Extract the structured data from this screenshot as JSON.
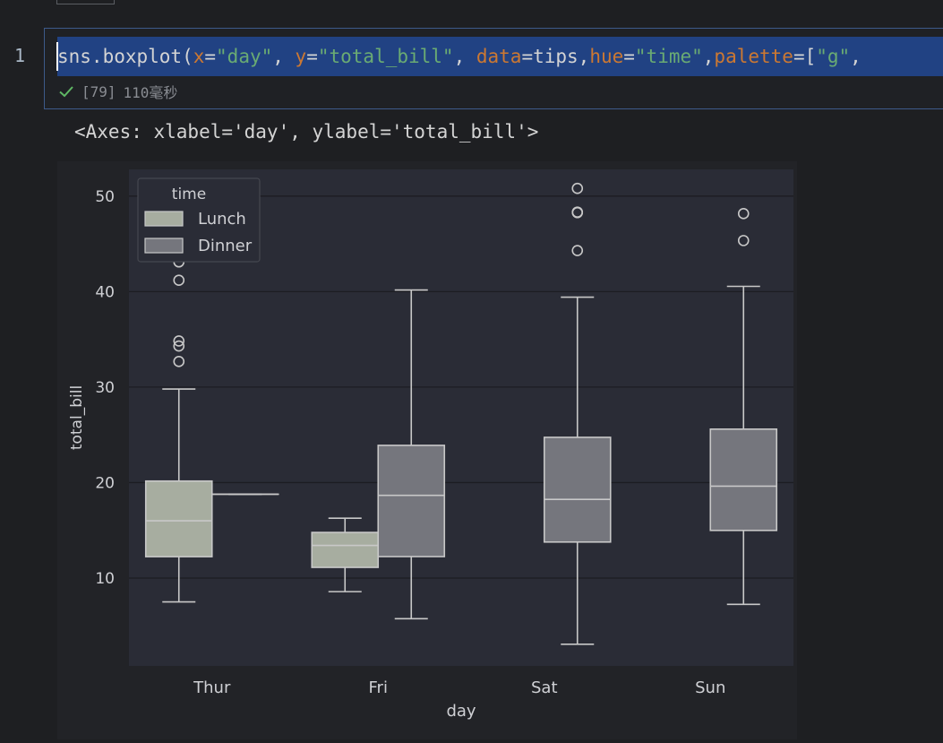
{
  "editor": {
    "line_number": "1",
    "code_tokens": [
      {
        "t": "sns.boxplot(",
        "c": "plain"
      },
      {
        "t": "x",
        "c": "kw"
      },
      {
        "t": "=",
        "c": "plain"
      },
      {
        "t": "\"day\"",
        "c": "str"
      },
      {
        "t": ", ",
        "c": "plain"
      },
      {
        "t": "y",
        "c": "kw"
      },
      {
        "t": "=",
        "c": "plain"
      },
      {
        "t": "\"total_bill\"",
        "c": "str"
      },
      {
        "t": ", ",
        "c": "plain"
      },
      {
        "t": "data",
        "c": "kw"
      },
      {
        "t": "=tips,",
        "c": "plain"
      },
      {
        "t": "hue",
        "c": "kw"
      },
      {
        "t": "=",
        "c": "plain"
      },
      {
        "t": "\"time\"",
        "c": "str"
      },
      {
        "t": ",",
        "c": "plain"
      },
      {
        "t": "palette",
        "c": "kw"
      },
      {
        "t": "=[",
        "c": "plain"
      },
      {
        "t": "\"g\"",
        "c": "str"
      },
      {
        "t": ",",
        "c": "plain"
      }
    ],
    "exec_count": "[79]",
    "exec_time": "110毫秒",
    "output": "<Axes: xlabel='day', ylabel='total_bill'>"
  },
  "colors": {
    "lunch": "#a7ada0",
    "dinner": "#75767d",
    "edge": "#c8c8c8",
    "axes_bg": "#2a2c36",
    "grid": "#1c1d22",
    "text": "#cfd0d4"
  },
  "chart_data": {
    "type": "box",
    "xlabel": "day",
    "ylabel": "total_bill",
    "ylim": [
      0.8,
      52.8
    ],
    "yticks": [
      10,
      20,
      30,
      40,
      50
    ],
    "categories": [
      "Thur",
      "Fri",
      "Sat",
      "Sun"
    ],
    "legend": {
      "title": "time",
      "position": "upper left",
      "entries": [
        "Lunch",
        "Dinner"
      ]
    },
    "grid": true,
    "series": [
      {
        "name": "Lunch",
        "boxes": [
          {
            "category": "Thur",
            "whislo": 7.51,
            "q1": 12.24,
            "med": 16.0,
            "q3": 20.16,
            "whishi": 29.8,
            "fliers": [
              32.68,
              34.3,
              34.83,
              41.19,
              43.11
            ]
          },
          {
            "category": "Fri",
            "whislo": 8.58,
            "q1": 11.12,
            "med": 13.42,
            "q3": 14.78,
            "whishi": 16.27,
            "fliers": []
          }
        ]
      },
      {
        "name": "Dinner",
        "boxes": [
          {
            "category": "Thur",
            "whislo": 18.78,
            "q1": 18.78,
            "med": 18.78,
            "q3": 18.78,
            "whishi": 18.78,
            "fliers": []
          },
          {
            "category": "Fri",
            "whislo": 5.75,
            "q1": 12.25,
            "med": 18.665,
            "q3": 23.9,
            "whishi": 40.17,
            "fliers": []
          },
          {
            "category": "Sat",
            "whislo": 3.07,
            "q1": 13.775,
            "med": 18.24,
            "q3": 24.74,
            "whishi": 39.42,
            "fliers": [
              44.3,
              48.27,
              48.33,
              50.81
            ]
          },
          {
            "category": "Sun",
            "whislo": 7.25,
            "q1": 14.99,
            "med": 19.63,
            "q3": 25.6,
            "whishi": 40.55,
            "fliers": [
              45.35,
              48.17
            ]
          }
        ]
      }
    ]
  }
}
